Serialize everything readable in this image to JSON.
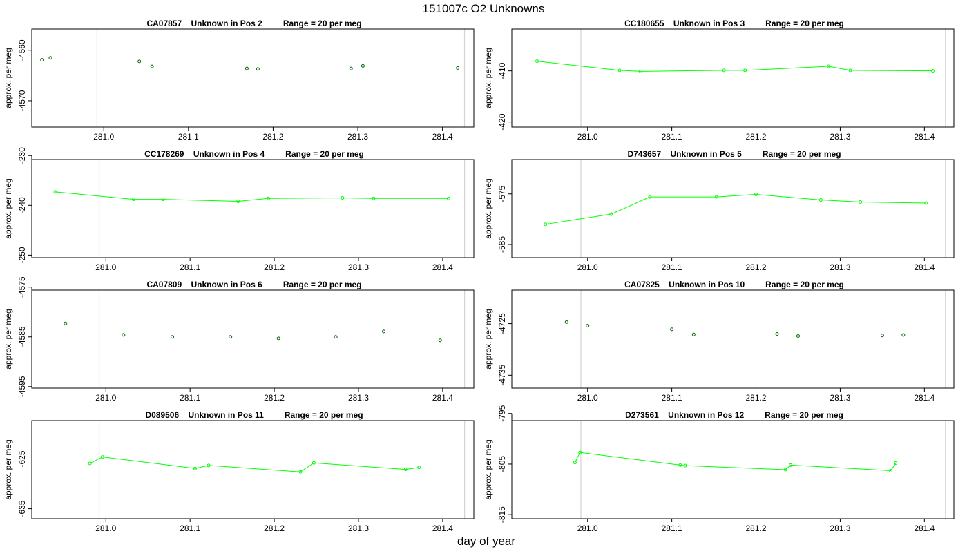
{
  "title": "151007c  O2 Unknowns",
  "xlabel": "day of year",
  "chart_data": [
    {
      "type": "scatter",
      "title": "CA07857    Unknown in Pos 2         Range = 20 per meg",
      "ylabel": "approx. per meg",
      "xlim": [
        280.915,
        281.437
      ],
      "ylim": [
        -4575.2,
        -4555.8
      ],
      "xticks": [
        281.0,
        281.1,
        281.2,
        281.3,
        281.4
      ],
      "xtick_labels": [
        "281.0",
        "281.1",
        "281.2",
        "281.3",
        "281.4"
      ],
      "yticks": [
        -4560,
        -4570
      ],
      "ytick_labels": [
        "-4560",
        "-4570"
      ],
      "vlines": [
        280.992,
        281.426
      ],
      "line": false,
      "x": [
        280.927,
        280.937,
        281.042,
        281.057,
        281.169,
        281.182,
        281.292,
        281.306,
        281.418
      ],
      "y": [
        -4561.9,
        -4561.5,
        -4562.2,
        -4563.2,
        -4563.6,
        -4563.7,
        -4563.6,
        -4563.1,
        -4563.5
      ]
    },
    {
      "type": "line",
      "title": "CC180655    Unknown in Pos 3         Range = 20 per meg",
      "ylabel": "approx. per meg",
      "xlim": [
        280.91,
        281.435
      ],
      "ylim": [
        -421.0,
        -401.8
      ],
      "xticks": [
        281.0,
        281.1,
        281.2,
        281.3,
        281.4
      ],
      "xtick_labels": [
        "281.0",
        "281.1",
        "281.2",
        "281.3",
        "281.4"
      ],
      "yticks": [
        -410,
        -420
      ],
      "ytick_labels": [
        "-410",
        "-420"
      ],
      "vlines": [
        280.992,
        281.425
      ],
      "line": true,
      "x": [
        280.94,
        281.038,
        281.063,
        281.162,
        281.187,
        281.286,
        281.312,
        281.41
      ],
      "y": [
        -408.1,
        -409.9,
        -410.1,
        -409.9,
        -409.9,
        -409.1,
        -409.9,
        -410.0
      ]
    },
    {
      "type": "line",
      "title": "CC178269    Unknown in Pos 4         Range = 20 per meg",
      "ylabel": "approx. per meg",
      "xlim": [
        280.912,
        281.437
      ],
      "ylim": [
        -250.5,
        -230.8
      ],
      "xticks": [
        281.0,
        281.1,
        281.2,
        281.3,
        281.4
      ],
      "xtick_labels": [
        "281.0",
        "281.1",
        "281.2",
        "281.3",
        "281.4"
      ],
      "yticks": [
        -230,
        -240,
        -250
      ],
      "ytick_labels": [
        "-230",
        "-240",
        "-250"
      ],
      "vlines": [
        280.992,
        281.426
      ],
      "line": true,
      "x": [
        280.94,
        281.033,
        281.068,
        281.157,
        281.193,
        281.281,
        281.318,
        281.407
      ],
      "y": [
        -237.3,
        -238.8,
        -238.8,
        -239.2,
        -238.6,
        -238.5,
        -238.6,
        -238.6
      ]
    },
    {
      "type": "line",
      "title": "D743657    Unknown in Pos 5         Range = 20 per meg",
      "ylabel": "approx. per meg",
      "xlim": [
        280.91,
        281.435
      ],
      "ylim": [
        -587.6,
        -568.2
      ],
      "xticks": [
        281.0,
        281.1,
        281.2,
        281.3,
        281.4
      ],
      "xtick_labels": [
        "281.0",
        "281.1",
        "281.2",
        "281.3",
        "281.4"
      ],
      "yticks": [
        -575,
        -585
      ],
      "ytick_labels": [
        "-575",
        "-585"
      ],
      "vlines": [
        280.992,
        281.425
      ],
      "line": true,
      "x": [
        280.95,
        281.028,
        281.074,
        281.153,
        281.2,
        281.277,
        281.324,
        281.402
      ],
      "y": [
        -581.0,
        -579.0,
        -575.6,
        -575.6,
        -575.1,
        -576.2,
        -576.6,
        -576.8
      ]
    },
    {
      "type": "scatter",
      "title": "CA07809    Unknown in Pos 6         Range = 20 per meg",
      "ylabel": "approx. per meg",
      "xlim": [
        280.912,
        281.437
      ],
      "ylim": [
        -4595.3,
        -4575.6
      ],
      "xticks": [
        281.0,
        281.1,
        281.2,
        281.3,
        281.4
      ],
      "xtick_labels": [
        "281.0",
        "281.1",
        "281.2",
        "281.3",
        "281.4"
      ],
      "yticks": [
        -4575,
        -4585,
        -4595
      ],
      "ytick_labels": [
        "-4575",
        "-4585",
        "-4595"
      ],
      "vlines": [
        280.992,
        281.426
      ],
      "line": false,
      "x": [
        280.952,
        281.021,
        281.079,
        281.148,
        281.205,
        281.273,
        281.33,
        281.397
      ],
      "y": [
        -4582.3,
        -4584.6,
        -4585.0,
        -4585.0,
        -4585.3,
        -4585.0,
        -4583.9,
        -4585.7
      ]
    },
    {
      "type": "scatter",
      "title": "CA07825    Unknown in Pos 10         Range = 20 per meg",
      "ylabel": "approx. per meg",
      "xlim": [
        280.91,
        281.435
      ],
      "ylim": [
        -4737.5,
        -4718.5
      ],
      "xticks": [
        281.0,
        281.1,
        281.2,
        281.3,
        281.4
      ],
      "xtick_labels": [
        "281.0",
        "281.1",
        "281.2",
        "281.3",
        "281.4"
      ],
      "yticks": [
        -4725,
        -4735
      ],
      "ytick_labels": [
        "-4725",
        "-4735"
      ],
      "vlines": [
        280.992,
        281.425
      ],
      "line": false,
      "x": [
        280.975,
        281.0,
        281.1,
        281.126,
        281.225,
        281.25,
        281.35,
        281.375
      ],
      "y": [
        -4724.7,
        -4725.4,
        -4726.1,
        -4727.1,
        -4727.0,
        -4727.4,
        -4727.3,
        -4727.2
      ]
    },
    {
      "type": "line",
      "title": "D089506    Unknown in Pos 11         Range = 20 per meg",
      "ylabel": "approx. per meg",
      "xlim": [
        280.912,
        281.437
      ],
      "ylim": [
        -637.0,
        -617.3
      ],
      "xticks": [
        281.0,
        281.1,
        281.2,
        281.3,
        281.4
      ],
      "xtick_labels": [
        "281.0",
        "281.1",
        "281.2",
        "281.3",
        "281.4"
      ],
      "yticks": [
        -625,
        -635
      ],
      "ytick_labels": [
        "-625",
        "-635"
      ],
      "vlines": [
        280.992,
        281.426
      ],
      "line": true,
      "x": [
        280.981,
        280.996,
        281.106,
        281.122,
        281.231,
        281.247,
        281.356,
        281.372
      ],
      "y": [
        -625.9,
        -624.6,
        -626.9,
        -626.3,
        -627.6,
        -625.8,
        -627.1,
        -626.7
      ]
    },
    {
      "type": "line",
      "title": "D273561    Unknown in Pos 12         Range = 20 per meg",
      "ylabel": "approx. per meg",
      "xlim": [
        280.91,
        281.435
      ],
      "ylim": [
        -815.8,
        -796.4
      ],
      "xticks": [
        281.0,
        281.1,
        281.2,
        281.3,
        281.4
      ],
      "xtick_labels": [
        "281.0",
        "281.1",
        "281.2",
        "281.3",
        "281.4"
      ],
      "yticks": [
        -795,
        -805,
        -815
      ],
      "ytick_labels": [
        "-795",
        "-805",
        "-815"
      ],
      "vlines": [
        280.992,
        281.425
      ],
      "line": true,
      "x": [
        280.985,
        280.991,
        281.11,
        281.116,
        281.235,
        281.241,
        281.36,
        281.366
      ],
      "y": [
        -804.7,
        -802.7,
        -805.2,
        -805.3,
        -806.1,
        -805.2,
        -806.3,
        -804.8
      ]
    }
  ],
  "colors": {
    "point": "#006400",
    "line": "#00ff00",
    "marker": "#00ff00",
    "vline": "#d3d3d3",
    "axis": "#000000"
  }
}
